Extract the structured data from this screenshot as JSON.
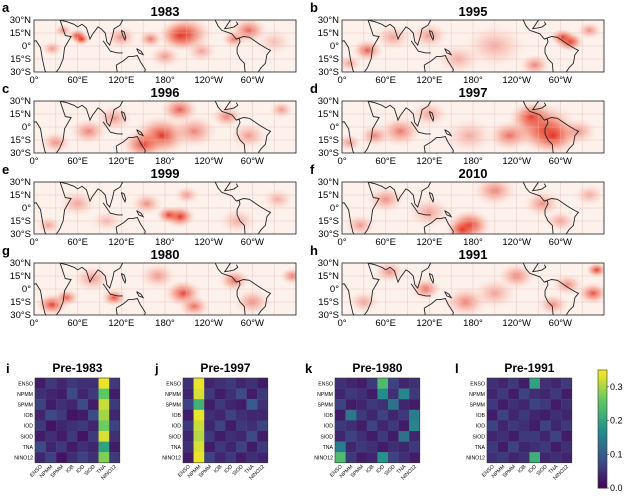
{
  "maps": [
    {
      "letter": "a",
      "year": "1983",
      "blobs": [
        [
          60,
          12,
          6,
          1.0
        ],
        [
          65,
          8,
          6,
          0.95
        ],
        [
          210,
          14,
          16,
          0.85
        ],
        [
          200,
          12,
          14,
          0.8
        ],
        [
          275,
          8,
          8,
          0.6
        ],
        [
          160,
          8,
          8,
          0.6
        ],
        [
          120,
          10,
          10,
          0.5
        ],
        [
          295,
          18,
          12,
          0.7
        ],
        [
          25,
          -3,
          7,
          0.45
        ],
        [
          180,
          -12,
          10,
          0.45
        ],
        [
          230,
          -6,
          10,
          0.4
        ],
        [
          40,
          18,
          6,
          0.5
        ],
        [
          330,
          5,
          12,
          0.25
        ]
      ]
    },
    {
      "letter": "b",
      "year": "1995",
      "blobs": [
        [
          313,
          5,
          9,
          1.0
        ],
        [
          303,
          10,
          8,
          0.9
        ],
        [
          35,
          -5,
          10,
          0.75
        ],
        [
          10,
          -20,
          8,
          0.4
        ],
        [
          120,
          12,
          12,
          0.45
        ],
        [
          210,
          0,
          20,
          0.35
        ],
        [
          265,
          -22,
          10,
          0.55
        ],
        [
          70,
          10,
          12,
          0.4
        ],
        [
          160,
          -15,
          14,
          0.35
        ],
        [
          340,
          18,
          8,
          0.5
        ]
      ]
    },
    {
      "letter": "c",
      "year": "1996",
      "blobs": [
        [
          175,
          -10,
          18,
          0.95
        ],
        [
          150,
          -20,
          14,
          0.85
        ],
        [
          200,
          20,
          12,
          0.75
        ],
        [
          220,
          -5,
          15,
          0.55
        ],
        [
          75,
          -5,
          12,
          0.55
        ],
        [
          30,
          -18,
          10,
          0.5
        ],
        [
          265,
          12,
          10,
          0.55
        ],
        [
          110,
          10,
          12,
          0.45
        ],
        [
          340,
          20,
          8,
          0.45
        ],
        [
          295,
          -10,
          12,
          0.45
        ]
      ]
    },
    {
      "letter": "d",
      "year": "1997",
      "blobs": [
        [
          275,
          0,
          22,
          0.95
        ],
        [
          290,
          -10,
          18,
          0.9
        ],
        [
          260,
          12,
          14,
          0.8
        ],
        [
          230,
          -10,
          14,
          0.65
        ],
        [
          80,
          -5,
          14,
          0.6
        ],
        [
          45,
          -10,
          10,
          0.55
        ],
        [
          10,
          -18,
          8,
          0.45
        ],
        [
          120,
          15,
          12,
          0.4
        ],
        [
          175,
          -10,
          16,
          0.35
        ],
        [
          325,
          -5,
          12,
          0.45
        ]
      ]
    },
    {
      "letter": "e",
      "year": "1999",
      "blobs": [
        [
          200,
          -10,
          10,
          1.0
        ],
        [
          185,
          -8,
          8,
          0.85
        ],
        [
          155,
          5,
          10,
          0.5
        ],
        [
          60,
          5,
          12,
          0.4
        ],
        [
          20,
          -20,
          8,
          0.4
        ],
        [
          210,
          15,
          8,
          0.45
        ],
        [
          280,
          -15,
          12,
          0.35
        ],
        [
          100,
          -15,
          10,
          0.3
        ],
        [
          335,
          10,
          10,
          0.35
        ]
      ]
    },
    {
      "letter": "f",
      "year": "2010",
      "blobs": [
        [
          175,
          -20,
          14,
          1.0
        ],
        [
          165,
          -25,
          10,
          0.85
        ],
        [
          210,
          20,
          14,
          0.55
        ],
        [
          275,
          5,
          12,
          0.5
        ],
        [
          25,
          -20,
          10,
          0.45
        ],
        [
          60,
          10,
          12,
          0.5
        ],
        [
          120,
          -5,
          14,
          0.4
        ],
        [
          300,
          -15,
          10,
          0.4
        ],
        [
          340,
          15,
          10,
          0.35
        ]
      ]
    },
    {
      "letter": "g",
      "year": "1980",
      "blobs": [
        [
          25,
          -18,
          10,
          0.9
        ],
        [
          45,
          -10,
          8,
          0.7
        ],
        [
          110,
          -10,
          8,
          0.8
        ],
        [
          205,
          -5,
          12,
          0.85
        ],
        [
          220,
          -20,
          10,
          0.65
        ],
        [
          275,
          10,
          10,
          0.65
        ],
        [
          355,
          15,
          8,
          0.6
        ],
        [
          170,
          15,
          12,
          0.45
        ],
        [
          80,
          12,
          12,
          0.45
        ],
        [
          300,
          -15,
          12,
          0.5
        ]
      ]
    },
    {
      "letter": "h",
      "year": "1991",
      "blobs": [
        [
          350,
          22,
          7,
          0.9
        ],
        [
          345,
          -5,
          10,
          0.8
        ],
        [
          115,
          0,
          10,
          0.65
        ],
        [
          170,
          -15,
          14,
          0.55
        ],
        [
          240,
          15,
          12,
          0.55
        ],
        [
          65,
          20,
          10,
          0.5
        ],
        [
          290,
          -18,
          10,
          0.5
        ],
        [
          30,
          -15,
          10,
          0.4
        ],
        [
          210,
          -5,
          14,
          0.4
        ],
        [
          310,
          5,
          10,
          0.5
        ]
      ]
    }
  ],
  "map_axis": {
    "lat_labels": [
      "30°N",
      "15°N",
      "0°",
      "15°S",
      "30°S"
    ],
    "lon_labels": [
      "0°",
      "60°E",
      "120°E",
      "180°",
      "120°W",
      "60°W"
    ]
  },
  "heatmaps": [
    {
      "letter": "i",
      "title": "Pre-1983",
      "values": [
        [
          0.03,
          0.06,
          0.04,
          0.06,
          0.05,
          0.05,
          0.34,
          0.06
        ],
        [
          0.05,
          0.04,
          0.03,
          0.08,
          0.04,
          0.06,
          0.26,
          0.03
        ],
        [
          0.07,
          0.03,
          0.05,
          0.04,
          0.08,
          0.03,
          0.32,
          0.06
        ],
        [
          0.04,
          0.08,
          0.06,
          0.02,
          0.03,
          0.08,
          0.3,
          0.04
        ],
        [
          0.06,
          0.02,
          0.04,
          0.05,
          0.06,
          0.04,
          0.27,
          0.07
        ],
        [
          0.03,
          0.05,
          0.03,
          0.06,
          0.02,
          0.06,
          0.33,
          0.05
        ],
        [
          0.08,
          0.04,
          0.06,
          0.03,
          0.05,
          0.04,
          0.2,
          0.03
        ],
        [
          0.04,
          0.07,
          0.02,
          0.05,
          0.07,
          0.05,
          0.28,
          0.06
        ]
      ]
    },
    {
      "letter": "j",
      "title": "Pre-1997",
      "values": [
        [
          0.05,
          0.34,
          0.04,
          0.05,
          0.06,
          0.04,
          0.05,
          0.03
        ],
        [
          0.04,
          0.33,
          0.06,
          0.03,
          0.05,
          0.08,
          0.03,
          0.06
        ],
        [
          0.07,
          0.22,
          0.03,
          0.06,
          0.04,
          0.03,
          0.1,
          0.05
        ],
        [
          0.03,
          0.34,
          0.05,
          0.04,
          0.07,
          0.05,
          0.04,
          0.04
        ],
        [
          0.06,
          0.32,
          0.04,
          0.07,
          0.03,
          0.06,
          0.05,
          0.07
        ],
        [
          0.04,
          0.31,
          0.06,
          0.03,
          0.05,
          0.04,
          0.08,
          0.03
        ],
        [
          0.05,
          0.33,
          0.03,
          0.06,
          0.04,
          0.07,
          0.03,
          0.06
        ],
        [
          0.03,
          0.34,
          0.07,
          0.04,
          0.06,
          0.03,
          0.05,
          0.04
        ]
      ]
    },
    {
      "letter": "k",
      "title": "Pre-1980",
      "values": [
        [
          0.05,
          0.04,
          0.03,
          0.06,
          0.24,
          0.07,
          0.04,
          0.05
        ],
        [
          0.04,
          0.06,
          0.05,
          0.03,
          0.17,
          0.05,
          0.16,
          0.06
        ],
        [
          0.07,
          0.03,
          0.04,
          0.06,
          0.05,
          0.13,
          0.04,
          0.03
        ],
        [
          0.03,
          0.14,
          0.06,
          0.04,
          0.07,
          0.04,
          0.06,
          0.15
        ],
        [
          0.06,
          0.05,
          0.03,
          0.07,
          0.04,
          0.06,
          0.03,
          0.16
        ],
        [
          0.04,
          0.07,
          0.05,
          0.03,
          0.06,
          0.03,
          0.13,
          0.04
        ],
        [
          0.15,
          0.04,
          0.06,
          0.05,
          0.03,
          0.05,
          0.04,
          0.06
        ],
        [
          0.24,
          0.06,
          0.03,
          0.04,
          0.18,
          0.07,
          0.05,
          0.03
        ]
      ]
    },
    {
      "letter": "l",
      "title": "Pre-1991",
      "values": [
        [
          0.05,
          0.04,
          0.06,
          0.03,
          0.2,
          0.05,
          0.04,
          0.06
        ],
        [
          0.04,
          0.06,
          0.03,
          0.07,
          0.05,
          0.04,
          0.06,
          0.03
        ],
        [
          0.06,
          0.03,
          0.05,
          0.04,
          0.07,
          0.06,
          0.03,
          0.05
        ],
        [
          0.03,
          0.07,
          0.04,
          0.06,
          0.04,
          0.03,
          0.05,
          0.04
        ],
        [
          0.07,
          0.04,
          0.06,
          0.05,
          0.03,
          0.07,
          0.04,
          0.06
        ],
        [
          0.04,
          0.05,
          0.03,
          0.06,
          0.06,
          0.04,
          0.07,
          0.03
        ],
        [
          0.06,
          0.03,
          0.07,
          0.04,
          0.05,
          0.06,
          0.03,
          0.05
        ],
        [
          0.05,
          0.06,
          0.04,
          0.05,
          0.22,
          0.04,
          0.05,
          0.04
        ]
      ]
    }
  ],
  "hm_labels": [
    "ENSO",
    "NPMM",
    "SPMM",
    "IOB",
    "IOD",
    "SIOD",
    "TNA",
    "NINO12"
  ],
  "colorbar": {
    "min": 0.0,
    "max": 0.35,
    "ticks": [
      "0.0",
      "0.1",
      "0.2",
      "0.3"
    ],
    "tick_values": [
      0.0,
      0.1,
      0.2,
      0.3
    ]
  }
}
